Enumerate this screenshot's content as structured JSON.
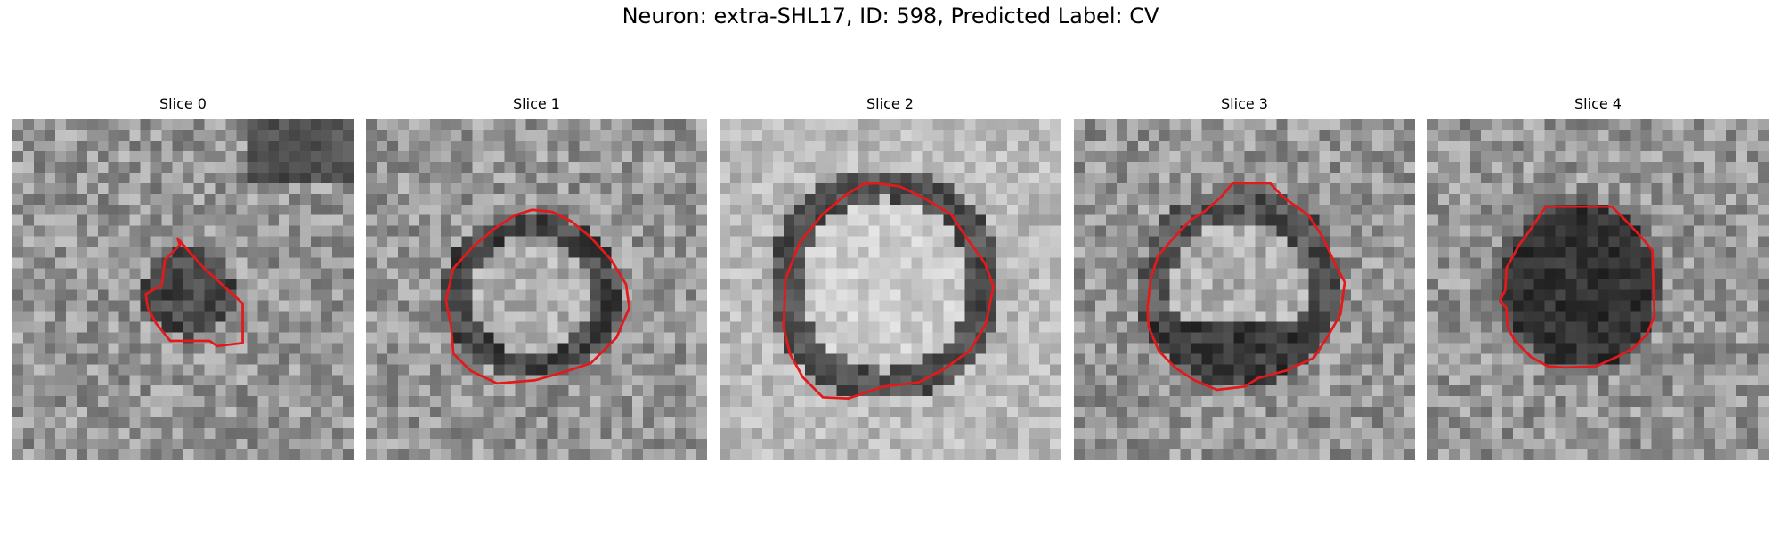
{
  "figure": {
    "title": "Neuron: extra-SHL17, ID: 598, Predicted Label: CV",
    "panels": [
      {
        "title": "Slice 0",
        "cell": "dark",
        "contour_color": "#e31a1c"
      },
      {
        "title": "Slice 1",
        "cell": "ring",
        "contour_color": "#e31a1c"
      },
      {
        "title": "Slice 2",
        "cell": "bright",
        "contour_color": "#e31a1c"
      },
      {
        "title": "Slice 3",
        "cell": "ring-dark-bottom",
        "contour_color": "#e31a1c"
      },
      {
        "title": "Slice 4",
        "cell": "dark-large",
        "contour_color": "#e31a1c"
      }
    ]
  }
}
